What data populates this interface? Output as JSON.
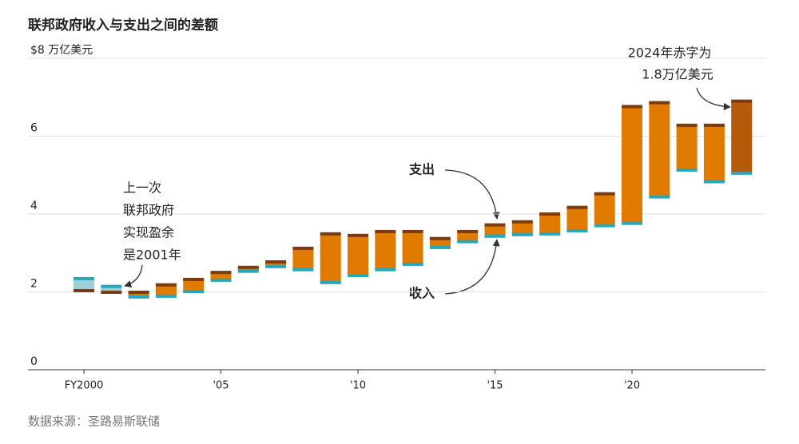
{
  "chart_data": {
    "type": "range-bar",
    "title": "联邦政府收入与支出之间的差额",
    "categories": [
      "FY2000",
      null,
      null,
      null,
      null,
      "'05",
      null,
      null,
      null,
      null,
      "'10",
      null,
      null,
      null,
      null,
      "'15",
      null,
      null,
      null,
      null,
      "'20",
      null,
      null,
      null,
      null
    ],
    "series": [
      {
        "name": "支出",
        "color": "#7a3a12",
        "values": [
          2.03,
          1.99,
          1.99,
          2.18,
          2.32,
          2.5,
          2.63,
          2.77,
          3.12,
          3.49,
          3.45,
          3.55,
          3.55,
          3.37,
          3.55,
          3.72,
          3.8,
          4.0,
          4.17,
          4.52,
          6.76,
          6.86,
          6.28,
          6.28,
          6.9
        ]
      },
      {
        "name": "收入",
        "color": "#27a7bb",
        "values": [
          2.34,
          2.14,
          1.87,
          1.89,
          2.01,
          2.3,
          2.53,
          2.65,
          2.57,
          2.24,
          2.42,
          2.57,
          2.71,
          3.14,
          3.29,
          3.43,
          3.47,
          3.49,
          3.57,
          3.7,
          3.76,
          4.44,
          5.13,
          4.83,
          5.05
        ]
      }
    ],
    "deficit_color": "#e07b00",
    "surplus_color": "#9fd0da",
    "highlight_color": "#b45a08",
    "ylim": [
      0,
      8
    ],
    "yticks": [
      0,
      2,
      4,
      6,
      {
        "value": 8,
        "label": "$8 万亿美元"
      }
    ],
    "grid": true,
    "annotations": {
      "last_surplus": [
        "上一次",
        "联邦政府",
        "实现盈余",
        "是2001年"
      ],
      "deficit_2024": [
        "2024年赤字为",
        "1.8万亿美元"
      ]
    },
    "source": "数据来源：圣路易斯联储"
  }
}
